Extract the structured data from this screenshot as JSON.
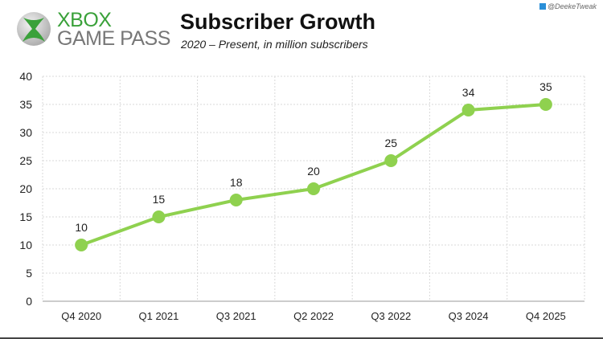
{
  "header": {
    "logo_line1": "XBOX",
    "logo_line2": "GAME PASS",
    "handle": "@DeekeTweak"
  },
  "colors": {
    "line": "#8fd14f",
    "grid": "#d9d9d9",
    "brand_green": "#3aa13a"
  },
  "chart_data": {
    "type": "line",
    "title": "Subscriber Growth",
    "subtitle": "2020 – Present, in million subscribers",
    "categories": [
      "Q4 2020",
      "Q1 2021",
      "Q3 2021",
      "Q2 2022",
      "Q3 2022",
      "Q3 2024",
      "Q4 2025"
    ],
    "values": [
      10,
      15,
      18,
      20,
      25,
      34,
      35
    ],
    "data_labels": true,
    "ylim": [
      0,
      40
    ],
    "yticks": [
      0,
      5,
      10,
      15,
      20,
      25,
      30,
      35,
      40
    ],
    "grid": "dashed both",
    "legend": "none"
  }
}
